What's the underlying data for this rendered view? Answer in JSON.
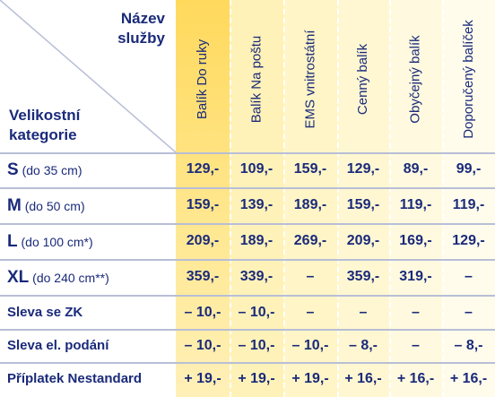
{
  "header": {
    "service_title_line1": "Název",
    "service_title_line2": "služby",
    "size_title_line1": "Velikostní",
    "size_title_line2": "kategorie"
  },
  "services": [
    "Balík Do ruky",
    "Balík Na poštu",
    "EMS vnitrostátní",
    "Cenný balík",
    "Obyčejný balík",
    "Doporučený balíček"
  ],
  "rows": [
    {
      "code": "S",
      "detail": "(do 35 cm)",
      "values": [
        "129,-",
        "109,-",
        "159,-",
        "129,-",
        "89,-",
        "99,-"
      ]
    },
    {
      "code": "M",
      "detail": "(do 50 cm)",
      "values": [
        "159,-",
        "139,-",
        "189,-",
        "159,-",
        "119,-",
        "119,-"
      ]
    },
    {
      "code": "L",
      "detail": "(do 100 cm*)",
      "values": [
        "209,-",
        "189,-",
        "269,-",
        "209,-",
        "169,-",
        "129,-"
      ]
    },
    {
      "code": "XL",
      "detail": "(do 240 cm**)",
      "values": [
        "359,-",
        "339,-",
        "–",
        "359,-",
        "319,-",
        "–"
      ]
    },
    {
      "label": "Sleva se ZK",
      "values": [
        "– 10,-",
        "– 10,-",
        "–",
        "–",
        "–",
        "–"
      ]
    },
    {
      "label": "Sleva el. podání",
      "values": [
        "– 10,-",
        "– 10,-",
        "– 10,-",
        "– 8,-",
        "–",
        "– 8,-"
      ]
    },
    {
      "label": "Příplatek Nestandard",
      "values": [
        "+ 19,-",
        "+ 19,-",
        "+ 19,-",
        "+ 16,-",
        "+ 16,-",
        "+ 16,-"
      ]
    }
  ]
}
